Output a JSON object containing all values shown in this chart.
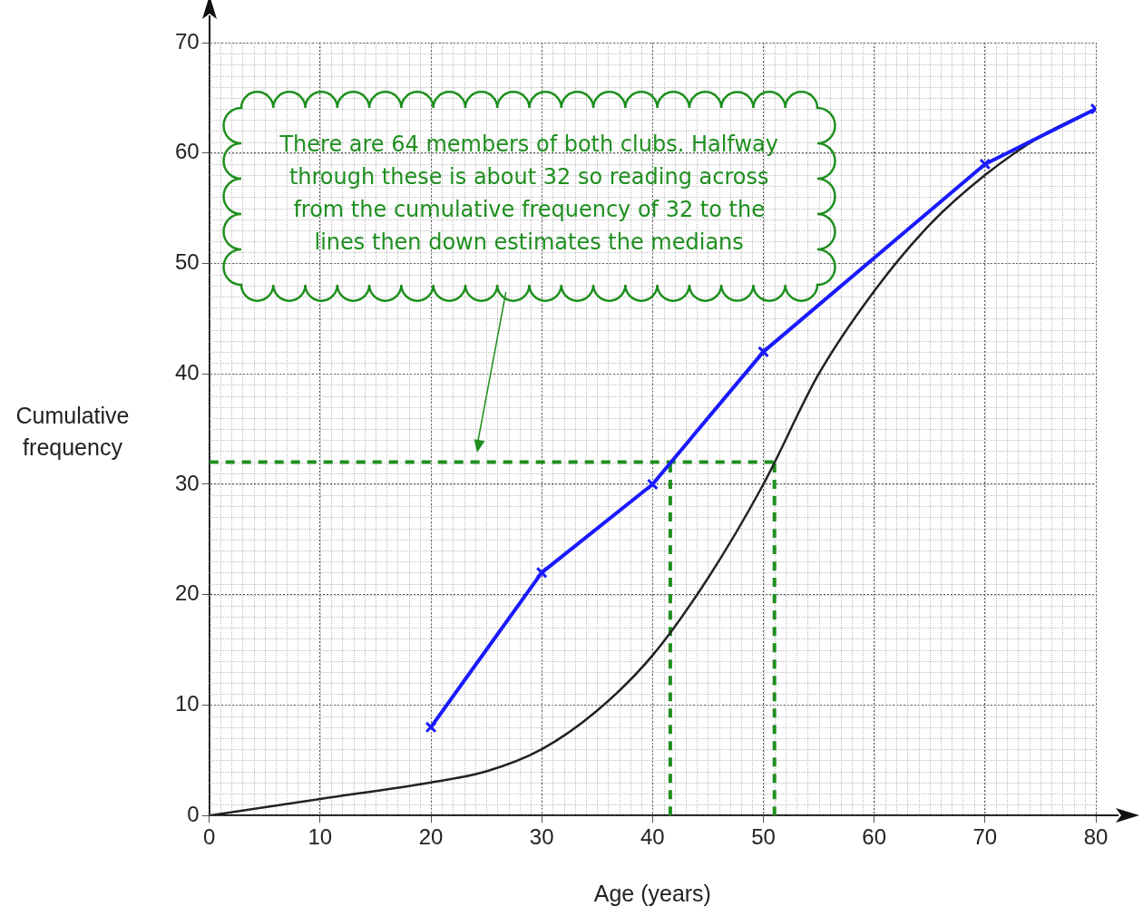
{
  "chart_data": {
    "type": "line",
    "xlabel": "Age (years)",
    "ylabel": "Cumulative\nfrequency",
    "xlim": [
      0,
      80
    ],
    "ylim": [
      0,
      70
    ],
    "xticks": [
      0,
      10,
      20,
      30,
      40,
      50,
      60,
      70,
      80
    ],
    "yticks": [
      0,
      10,
      20,
      30,
      40,
      50,
      60,
      70
    ],
    "grid": true,
    "legend": false,
    "series": [
      {
        "color": "#1a1aff",
        "marker": "cross",
        "x": [
          20,
          30,
          40,
          50,
          70,
          80
        ],
        "values": [
          8,
          22,
          30,
          42,
          59,
          64
        ]
      },
      {
        "color": "#222222",
        "marker": "none",
        "x": [
          0,
          10,
          20,
          25,
          30,
          35,
          40,
          45,
          50,
          55,
          60,
          65,
          70,
          75,
          80
        ],
        "values": [
          0,
          1.5,
          3,
          4,
          6,
          9.5,
          14.5,
          21.5,
          30,
          40,
          47.5,
          53.5,
          58,
          61.5,
          64
        ]
      },
      {
        "color": "#1f8f1f",
        "marker": "none",
        "line_style": "dashed",
        "x": [
          0,
          51
        ],
        "values": [
          32,
          32
        ]
      },
      {
        "color": "#1f8f1f",
        "marker": "none",
        "line_style": "dashed",
        "x": [
          41.6,
          41.6
        ],
        "values": [
          0,
          32
        ]
      },
      {
        "color": "#1f8f1f",
        "marker": "none",
        "line_style": "dashed",
        "x": [
          51,
          51
        ],
        "values": [
          0,
          32
        ]
      }
    ],
    "annotations": [
      "There are 64 members of both clubs. Halfway\nthrough these is about 32 so reading across\nfrom the cumulative frequency of 32 to the\nlines then down estimates the medians"
    ]
  }
}
